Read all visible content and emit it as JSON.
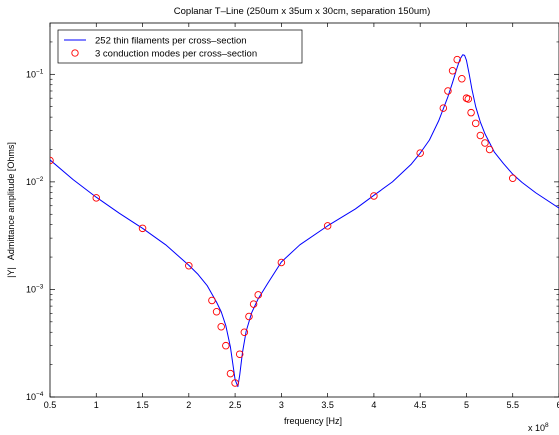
{
  "chart_data": {
    "type": "line",
    "title": "Coplanar T–Line (250um x 35um x 30cm, separation 150um)",
    "xlabel": "frequency [Hz]",
    "ylabel": "|Y|   Admittance amplitude [Ohms]",
    "x_multiplier_label": "x 10",
    "x_multiplier_exponent": "8",
    "xlim": [
      0.5,
      6
    ],
    "ylim": [
      0.0001,
      0.3
    ],
    "yscale": "log",
    "grid": false,
    "legend_position": "top-left",
    "x_ticks": [
      "0.5",
      "1",
      "1.5",
      "2",
      "2.5",
      "3",
      "3.5",
      "4",
      "4.5",
      "5",
      "5.5",
      "6"
    ],
    "y_ticks": [
      {
        "value": 0.0001,
        "base": "10",
        "exp": "−4"
      },
      {
        "value": 0.001,
        "base": "10",
        "exp": "−3"
      },
      {
        "value": 0.01,
        "base": "10",
        "exp": "−2"
      },
      {
        "value": 0.1,
        "base": "10",
        "exp": "−1"
      }
    ],
    "series": [
      {
        "name": "252 thin filaments per cross–section",
        "kind": "line",
        "color": "#0000ff",
        "x": [
          0.5,
          0.75,
          1.0,
          1.25,
          1.5,
          1.75,
          2.0,
          2.1,
          2.2,
          2.3,
          2.35,
          2.4,
          2.45,
          2.5,
          2.53,
          2.55,
          2.58,
          2.62,
          2.68,
          2.75,
          2.85,
          3.0,
          3.2,
          3.5,
          3.8,
          4.0,
          4.2,
          4.4,
          4.5,
          4.6,
          4.7,
          4.8,
          4.85,
          4.9,
          4.93,
          4.96,
          4.98,
          5.0,
          5.03,
          5.06,
          5.1,
          5.15,
          5.2,
          5.3,
          5.4,
          5.5,
          5.6,
          5.75,
          6.0
        ],
        "y": [
          0.016,
          0.0105,
          0.0072,
          0.0051,
          0.0037,
          0.0026,
          0.00168,
          0.00138,
          0.00108,
          0.00076,
          0.00062,
          0.00046,
          0.00029,
          0.000145,
          0.000125,
          0.00016,
          0.00026,
          0.00041,
          0.00061,
          0.00082,
          0.00113,
          0.0018,
          0.0026,
          0.0039,
          0.0056,
          0.0075,
          0.01,
          0.0145,
          0.0185,
          0.0245,
          0.037,
          0.062,
          0.084,
          0.116,
          0.138,
          0.152,
          0.15,
          0.135,
          0.1,
          0.072,
          0.05,
          0.036,
          0.028,
          0.019,
          0.0148,
          0.0118,
          0.0099,
          0.0079,
          0.0057
        ]
      },
      {
        "name": "3 conduction modes per cross–section",
        "kind": "markers",
        "color": "#ff0000",
        "x": [
          0.5,
          1.0,
          1.5,
          2.0,
          2.25,
          2.3,
          2.35,
          2.4,
          2.45,
          2.5,
          2.55,
          2.6,
          2.65,
          2.7,
          2.75,
          3.0,
          3.5,
          4.0,
          4.5,
          4.75,
          4.8,
          4.85,
          4.9,
          4.95,
          5.0,
          5.02,
          5.05,
          5.1,
          5.15,
          5.2,
          5.25,
          5.5
        ],
        "y": [
          0.0158,
          0.0071,
          0.0037,
          0.00166,
          0.00079,
          0.00062,
          0.00045,
          0.0003,
          0.000165,
          0.000135,
          0.00025,
          0.0004,
          0.00056,
          0.00073,
          0.00089,
          0.00178,
          0.0039,
          0.0074,
          0.0185,
          0.0485,
          0.07,
          0.108,
          0.137,
          0.091,
          0.06,
          0.059,
          0.044,
          0.035,
          0.027,
          0.023,
          0.02,
          0.0108
        ]
      }
    ]
  }
}
